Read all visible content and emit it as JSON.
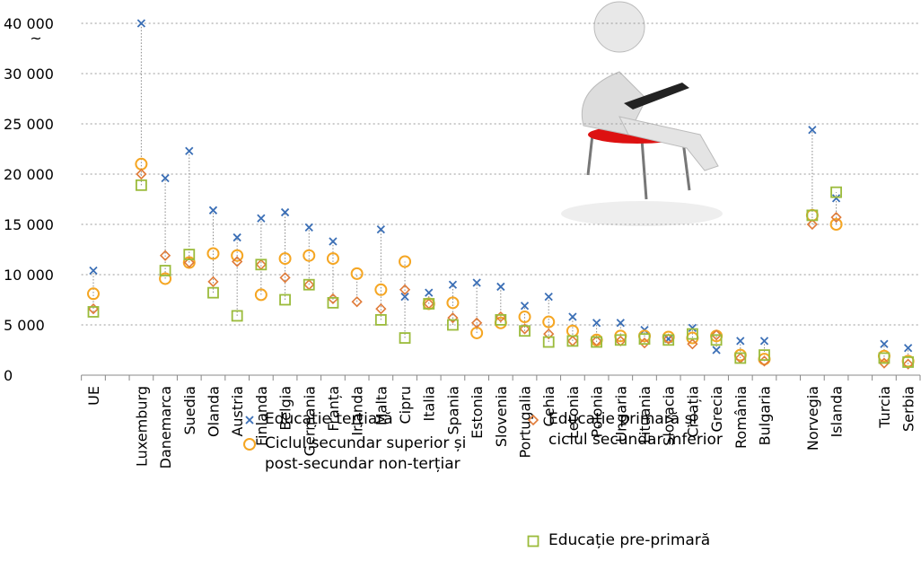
{
  "chart_data": {
    "type": "dot",
    "categories": [
      "UE",
      null,
      "Luxemburg",
      "Danemarca",
      "Suedia",
      "Olanda",
      "Austria",
      "Finlanda",
      "Belgia",
      "Germania",
      "Franța",
      "Irlanda",
      "Malta",
      "Cipru",
      "Italia",
      "Spania",
      "Estonia",
      "Slovenia",
      "Portugalia",
      "Cehia",
      "Letonia",
      "Polonia",
      "Ungaria",
      "Lituania",
      "Slovacia",
      "Croația",
      "Grecia",
      "România",
      "Bulgaria",
      null,
      "Norvegia",
      "Islanda",
      null,
      "Turcia",
      "Serbia"
    ],
    "series": [
      {
        "name": "Educație terțiară",
        "color": "#3b6fb6",
        "marker": "x",
        "values": [
          10400,
          null,
          40000,
          19600,
          22300,
          16400,
          13700,
          15600,
          16200,
          14700,
          13300,
          null,
          14500,
          7800,
          8200,
          9000,
          9200,
          8800,
          6900,
          7800,
          5800,
          5200,
          5200,
          4500,
          3600,
          4700,
          2500,
          3400,
          3400,
          null,
          24400,
          17600,
          null,
          3100,
          2700
        ]
      },
      {
        "name": "Ciclul secundar superior și post-secundar non-terțiar",
        "color": "#f5a623",
        "marker": "circle",
        "values": [
          8100,
          null,
          21000,
          9600,
          11200,
          12100,
          11900,
          8000,
          11600,
          11900,
          11600,
          10100,
          8500,
          11300,
          7100,
          7200,
          4200,
          5200,
          5800,
          5300,
          4400,
          3500,
          3900,
          3900,
          3800,
          3700,
          3900,
          2000,
          1600,
          null,
          15900,
          15000,
          null,
          1900,
          1400
        ]
      },
      {
        "name": "Educație primară și ciclul secundar inferior",
        "color": "#e07b39",
        "marker": "diamond",
        "values": [
          6600,
          null,
          20000,
          11900,
          11200,
          9300,
          11300,
          11000,
          9700,
          9000,
          7600,
          7300,
          6600,
          8500,
          7100,
          5700,
          5200,
          5800,
          4600,
          4100,
          3400,
          3400,
          3400,
          3200,
          3600,
          3100,
          4000,
          1700,
          1400,
          null,
          15000,
          15700,
          null,
          1200,
          1100
        ]
      },
      {
        "name": "Educație pre-primară",
        "color": "#9bbb3b",
        "marker": "square",
        "values": [
          6300,
          null,
          18900,
          10400,
          12000,
          8200,
          5900,
          11000,
          7500,
          9000,
          7200,
          null,
          5500,
          3700,
          7100,
          5000,
          null,
          5500,
          4400,
          3300,
          3400,
          3300,
          3500,
          3600,
          3500,
          4100,
          3500,
          1700,
          2000,
          null,
          15900,
          18200,
          null,
          1700,
          1300
        ]
      }
    ],
    "ylim": [
      0,
      40000
    ],
    "yticks": [
      0,
      {
        "value": 5000,
        "label": "5 000"
      },
      {
        "value": 10000,
        "label": "10 000"
      },
      {
        "value": 15000,
        "label": "15 000"
      },
      {
        "value": 20000,
        "label": "20 000"
      },
      {
        "value": 25000,
        "label": "25 000"
      },
      {
        "value": 30000,
        "label": "30 000"
      },
      {
        "value": 40000,
        "label": "40 000"
      }
    ],
    "axis_break": {
      "from": 30000,
      "to": 40000,
      "label": "~"
    },
    "grid": true
  }
}
